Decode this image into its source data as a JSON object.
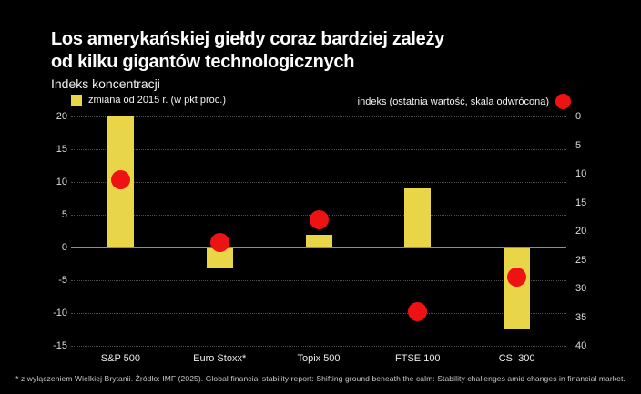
{
  "header": {
    "title_line1": "Los amerykańskiej giełdy coraz bardziej zależy",
    "title_line2": "od kilku gigantów technologicznych",
    "subtitle": "Indeks koncentracji"
  },
  "legend": {
    "bar_label": "zmiana od 2015 r. (w pkt proc.)",
    "dot_label": "indeks (ostatnia wartość, skala odwrócona)"
  },
  "footnote": "* z wyłączeniem Wielkiej Brytanii. Źródło: IMF (2025). Global financial stability report: Shifting ground beneath the calm: Stability challenges amid changes in financial market.",
  "colors": {
    "background": "#000000",
    "bar": "#e9d548",
    "dot": "#ee1212",
    "grid": "#4d4d4d",
    "zero_line": "#8f8f8f",
    "title_text": "#ffffff",
    "tick_text": "#dcdcdc",
    "footnote_text": "#c9c9c9"
  },
  "chart_data": {
    "type": "bar",
    "title": "Indeks koncentracji",
    "categories": [
      "S&P 500",
      "Euro Stoxx*",
      "Topix 500",
      "FTSE 100",
      "CSI 300"
    ],
    "series": [
      {
        "name": "zmiana od 2015 r. (w pkt proc.)",
        "type": "bar",
        "axis": "left",
        "values": [
          20,
          -3,
          2,
          9,
          -12.5
        ]
      },
      {
        "name": "indeks (ostatnia wartość, skala odwrócona)",
        "type": "scatter",
        "axis": "right",
        "values": [
          11,
          22,
          18,
          34,
          28
        ]
      }
    ],
    "left_axis": {
      "min": -15,
      "max": 20,
      "ticks": [
        20,
        15,
        10,
        5,
        0,
        -5,
        -10,
        -15
      ]
    },
    "right_axis": {
      "min": 0,
      "max": 40,
      "inverted": true,
      "ticks": [
        0,
        5,
        10,
        15,
        20,
        25,
        30,
        35,
        40
      ]
    },
    "grid": "horizontal dotted",
    "zero_line": true,
    "legend_position": "top"
  }
}
